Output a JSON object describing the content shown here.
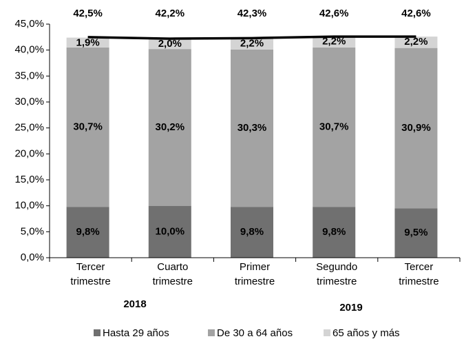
{
  "chart_data": {
    "type": "stacked_bar",
    "categories": [
      [
        "Tercer",
        "trimestre"
      ],
      [
        "Cuarto",
        "trimestre"
      ],
      [
        "Primer",
        "trimestre"
      ],
      [
        "Segundo",
        "trimestre"
      ],
      [
        "Tercer",
        "trimestre"
      ]
    ],
    "groups": [
      {
        "label": "2018"
      },
      {
        "label": "2019"
      }
    ],
    "series": [
      {
        "name": "Hasta 29 años",
        "color": "#707070",
        "values": [
          9.8,
          10.0,
          9.8,
          9.8,
          9.5
        ],
        "value_labels": [
          "9,8%",
          "10,0%",
          "9,8%",
          "9,8%",
          "9,5%"
        ]
      },
      {
        "name": "De 30 a 64 años",
        "color": "#a3a3a3",
        "values": [
          30.7,
          30.2,
          30.3,
          30.7,
          30.9
        ],
        "value_labels": [
          "30,7%",
          "30,2%",
          "30,3%",
          "30,7%",
          "30,9%"
        ]
      },
      {
        "name": "65 años y más",
        "color": "#d4d4d4",
        "values": [
          1.9,
          2.0,
          2.2,
          2.2,
          2.2
        ],
        "value_labels": [
          "1,9%",
          "2,0%",
          "2,2%",
          "2,2%",
          "2,2%"
        ]
      }
    ],
    "total": {
      "color": "#000000",
      "values": [
        42.5,
        42.2,
        42.3,
        42.6,
        42.6
      ],
      "value_labels": [
        "42,5%",
        "42,2%",
        "42,3%",
        "42,6%",
        "42,6%"
      ]
    },
    "ylim": [
      0,
      45
    ],
    "yticks": [
      {
        "value": 0,
        "label": "0,0%"
      },
      {
        "value": 5,
        "label": "5,0%"
      },
      {
        "value": 10,
        "label": "10,0%"
      },
      {
        "value": 15,
        "label": "15,0%"
      },
      {
        "value": 20,
        "label": "20,0%"
      },
      {
        "value": 25,
        "label": "25,0%"
      },
      {
        "value": 30,
        "label": "30,0%"
      },
      {
        "value": 35,
        "label": "35,0%"
      },
      {
        "value": 40,
        "label": "40,0%"
      },
      {
        "value": 45,
        "label": "45,0%"
      }
    ],
    "grid": false
  }
}
